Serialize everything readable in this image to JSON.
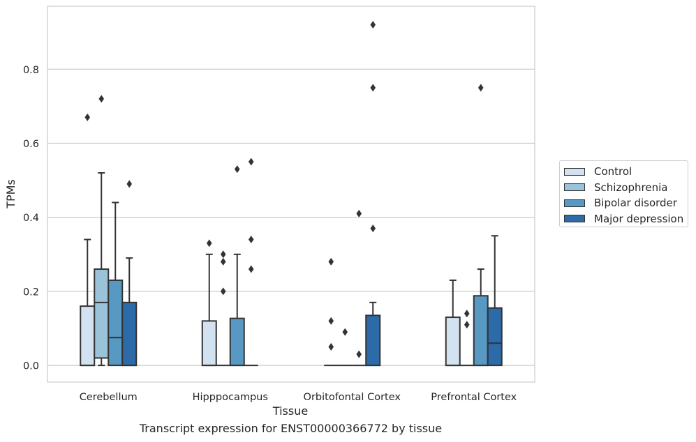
{
  "chart_data": {
    "type": "boxplot",
    "xlabel": "Tissue",
    "ylabel": "TPMs",
    "ylim": [
      -0.045,
      0.97
    ],
    "yticks": [
      "0.0",
      "0.2",
      "0.4",
      "0.6",
      "0.8"
    ],
    "grid": true,
    "legend_position": "right",
    "categories": [
      "Cerebellum",
      "Hipppocampus",
      "Orbitofontal Cortex",
      "Prefrontal Cortex"
    ],
    "series": [
      {
        "name": "Control",
        "color": "#d3e2f0",
        "boxes": [
          {
            "q1": 0.0,
            "median": 0.0,
            "q3": 0.16,
            "whislo": 0.0,
            "whishi": 0.34,
            "fliers": [
              0.67
            ]
          },
          {
            "q1": 0.0,
            "median": 0.0,
            "q3": 0.12,
            "whislo": 0.0,
            "whishi": 0.3,
            "fliers": [
              0.33
            ]
          },
          {
            "q1": 0.0,
            "median": 0.0,
            "q3": 0.0,
            "whislo": 0.0,
            "whishi": 0.0,
            "fliers": [
              0.05,
              0.12,
              0.28
            ]
          },
          {
            "q1": 0.0,
            "median": 0.0,
            "q3": 0.13,
            "whislo": 0.0,
            "whishi": 0.23,
            "fliers": []
          }
        ]
      },
      {
        "name": "Schizophrenia",
        "color": "#9ac2d9",
        "boxes": [
          {
            "q1": 0.02,
            "median": 0.17,
            "q3": 0.26,
            "whislo": 0.0,
            "whishi": 0.52,
            "fliers": [
              0.72
            ]
          },
          {
            "q1": 0.0,
            "median": 0.0,
            "q3": 0.0,
            "whislo": 0.0,
            "whishi": 0.0,
            "fliers": [
              0.2,
              0.28,
              0.3
            ]
          },
          {
            "q1": 0.0,
            "median": 0.0,
            "q3": 0.0,
            "whislo": 0.0,
            "whishi": 0.0,
            "fliers": [
              0.09
            ]
          },
          {
            "q1": 0.0,
            "median": 0.0,
            "q3": 0.0,
            "whislo": 0.0,
            "whishi": 0.0,
            "fliers": [
              0.11,
              0.14
            ]
          }
        ]
      },
      {
        "name": "Bipolar disorder",
        "color": "#5899c4",
        "boxes": [
          {
            "q1": 0.0,
            "median": 0.075,
            "q3": 0.23,
            "whislo": 0.0,
            "whishi": 0.44,
            "fliers": []
          },
          {
            "q1": 0.0,
            "median": 0.0,
            "q3": 0.127,
            "whislo": 0.0,
            "whishi": 0.3,
            "fliers": [
              0.53
            ]
          },
          {
            "q1": 0.0,
            "median": 0.0,
            "q3": 0.0,
            "whislo": 0.0,
            "whishi": 0.0,
            "fliers": [
              0.03,
              0.41
            ]
          },
          {
            "q1": 0.0,
            "median": 0.0,
            "q3": 0.188,
            "whislo": 0.0,
            "whishi": 0.26,
            "fliers": [
              0.75
            ]
          }
        ]
      },
      {
        "name": "Major depression",
        "color": "#2c6ba7",
        "boxes": [
          {
            "q1": 0.0,
            "median": 0.0,
            "q3": 0.17,
            "whislo": 0.0,
            "whishi": 0.29,
            "fliers": [
              0.49
            ]
          },
          {
            "q1": 0.0,
            "median": 0.0,
            "q3": 0.0,
            "whislo": 0.0,
            "whishi": 0.0,
            "fliers": [
              0.26,
              0.34,
              0.55
            ]
          },
          {
            "q1": 0.0,
            "median": 0.0,
            "q3": 0.135,
            "whislo": 0.0,
            "whishi": 0.17,
            "fliers": [
              0.37,
              0.75,
              0.92
            ]
          },
          {
            "q1": 0.0,
            "median": 0.06,
            "q3": 0.155,
            "whislo": 0.0,
            "whishi": 0.35,
            "fliers": []
          }
        ]
      }
    ]
  },
  "caption": "Transcript expression for ENST00000366772 by tissue",
  "colors": {
    "grid": "#cccccc",
    "box_edge": "#333333",
    "axis_frame": "#cccccc"
  }
}
